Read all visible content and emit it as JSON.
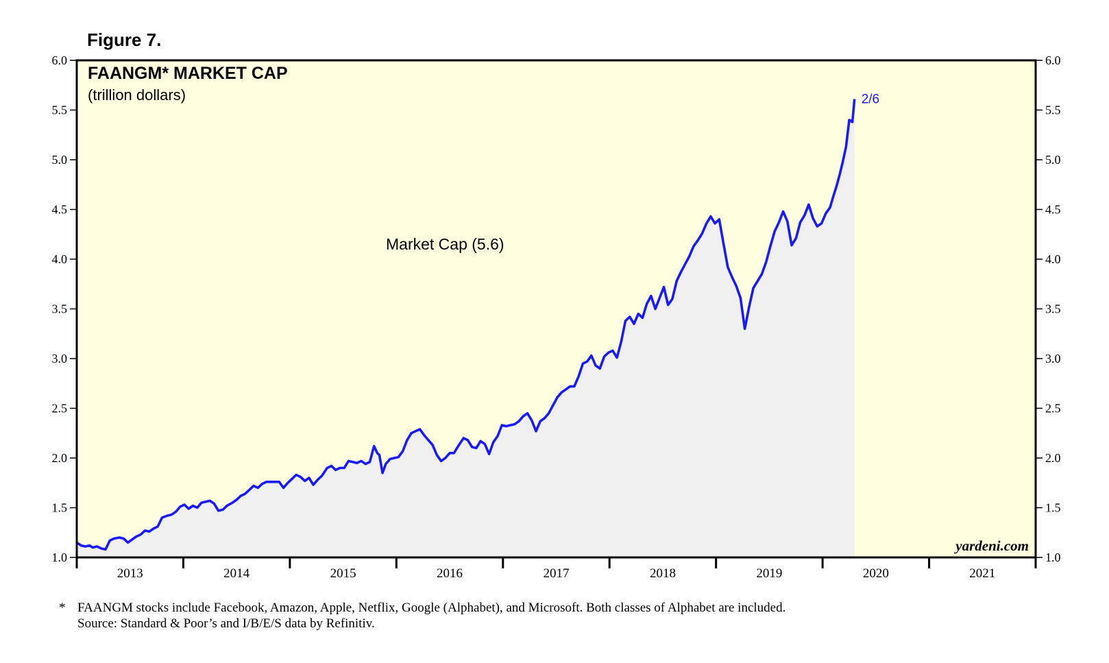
{
  "figure_label": "Figure 7.",
  "footnote": {
    "marker": "*",
    "line1": "FAANGM stocks include Facebook, Amazon, Apple, Netflix, Google (Alphabet), and Microsoft. Both classes of Alphabet are included.",
    "line2": "Source: Standard & Poor’s and I/B/E/S data by Refinitiv."
  },
  "watermark": "yardeni.com",
  "colors": {
    "plot_background": "#ffffe0",
    "area_fill": "#f0f0f0",
    "line": "#1a1aff",
    "frame": "#000000"
  },
  "chart_data": {
    "type": "area",
    "title": "FAANGM* MARKET CAP",
    "subtitle": "(trillion dollars)",
    "series": [
      {
        "name": "Market Cap",
        "label": "Market Cap (5.6)",
        "end_label": "2/6",
        "points": [
          [
            2013.0,
            1.15
          ],
          [
            2013.04,
            1.12
          ],
          [
            2013.08,
            1.11
          ],
          [
            2013.12,
            1.12
          ],
          [
            2013.15,
            1.1
          ],
          [
            2013.19,
            1.11
          ],
          [
            2013.23,
            1.09
          ],
          [
            2013.27,
            1.08
          ],
          [
            2013.31,
            1.17
          ],
          [
            2013.35,
            1.19
          ],
          [
            2013.4,
            1.2
          ],
          [
            2013.44,
            1.19
          ],
          [
            2013.48,
            1.15
          ],
          [
            2013.52,
            1.18
          ],
          [
            2013.56,
            1.21
          ],
          [
            2013.6,
            1.23
          ],
          [
            2013.64,
            1.27
          ],
          [
            2013.68,
            1.26
          ],
          [
            2013.72,
            1.29
          ],
          [
            2013.76,
            1.31
          ],
          [
            2013.8,
            1.4
          ],
          [
            2013.85,
            1.42
          ],
          [
            2013.89,
            1.43
          ],
          [
            2013.93,
            1.46
          ],
          [
            2013.97,
            1.51
          ],
          [
            2014.01,
            1.53
          ],
          [
            2014.05,
            1.49
          ],
          [
            2014.09,
            1.52
          ],
          [
            2014.13,
            1.5
          ],
          [
            2014.17,
            1.55
          ],
          [
            2014.21,
            1.56
          ],
          [
            2014.25,
            1.57
          ],
          [
            2014.29,
            1.54
          ],
          [
            2014.33,
            1.47
          ],
          [
            2014.37,
            1.48
          ],
          [
            2014.41,
            1.52
          ],
          [
            2014.46,
            1.55
          ],
          [
            2014.5,
            1.58
          ],
          [
            2014.54,
            1.62
          ],
          [
            2014.58,
            1.64
          ],
          [
            2014.62,
            1.68
          ],
          [
            2014.66,
            1.72
          ],
          [
            2014.7,
            1.7
          ],
          [
            2014.74,
            1.74
          ],
          [
            2014.78,
            1.76
          ],
          [
            2014.82,
            1.76
          ],
          [
            2014.86,
            1.76
          ],
          [
            2014.9,
            1.76
          ],
          [
            2014.94,
            1.7
          ],
          [
            2014.98,
            1.75
          ],
          [
            2015.02,
            1.79
          ],
          [
            2015.06,
            1.83
          ],
          [
            2015.1,
            1.81
          ],
          [
            2015.14,
            1.77
          ],
          [
            2015.18,
            1.8
          ],
          [
            2015.22,
            1.73
          ],
          [
            2015.26,
            1.78
          ],
          [
            2015.3,
            1.82
          ],
          [
            2015.35,
            1.9
          ],
          [
            2015.39,
            1.92
          ],
          [
            2015.43,
            1.88
          ],
          [
            2015.47,
            1.9
          ],
          [
            2015.51,
            1.9
          ],
          [
            2015.55,
            1.97
          ],
          [
            2015.59,
            1.96
          ],
          [
            2015.63,
            1.95
          ],
          [
            2015.67,
            1.97
          ],
          [
            2015.71,
            1.94
          ],
          [
            2015.75,
            1.96
          ],
          [
            2015.79,
            2.12
          ],
          [
            2015.82,
            2.05
          ],
          [
            2015.84,
            2.03
          ],
          [
            2015.87,
            1.85
          ],
          [
            2015.9,
            1.94
          ],
          [
            2015.94,
            1.99
          ],
          [
            2015.98,
            2.0
          ],
          [
            2016.02,
            2.01
          ],
          [
            2016.06,
            2.07
          ],
          [
            2016.1,
            2.18
          ],
          [
            2016.14,
            2.25
          ],
          [
            2016.18,
            2.27
          ],
          [
            2016.22,
            2.29
          ],
          [
            2016.26,
            2.23
          ],
          [
            2016.3,
            2.18
          ],
          [
            2016.34,
            2.13
          ],
          [
            2016.38,
            2.03
          ],
          [
            2016.42,
            1.97
          ],
          [
            2016.46,
            2.0
          ],
          [
            2016.5,
            2.05
          ],
          [
            2016.54,
            2.05
          ],
          [
            2016.58,
            2.12
          ],
          [
            2016.63,
            2.2
          ],
          [
            2016.67,
            2.18
          ],
          [
            2016.71,
            2.11
          ],
          [
            2016.75,
            2.1
          ],
          [
            2016.79,
            2.17
          ],
          [
            2016.83,
            2.14
          ],
          [
            2016.87,
            2.04
          ],
          [
            2016.91,
            2.16
          ],
          [
            2016.95,
            2.22
          ],
          [
            2016.99,
            2.33
          ],
          [
            2017.03,
            2.32
          ],
          [
            2017.07,
            2.33
          ],
          [
            2017.11,
            2.34
          ],
          [
            2017.15,
            2.37
          ],
          [
            2017.19,
            2.42
          ],
          [
            2017.23,
            2.45
          ],
          [
            2017.27,
            2.38
          ],
          [
            2017.31,
            2.27
          ],
          [
            2017.35,
            2.37
          ],
          [
            2017.39,
            2.4
          ],
          [
            2017.43,
            2.45
          ],
          [
            2017.47,
            2.53
          ],
          [
            2017.51,
            2.61
          ],
          [
            2017.55,
            2.66
          ],
          [
            2017.59,
            2.69
          ],
          [
            2017.63,
            2.72
          ],
          [
            2017.67,
            2.72
          ],
          [
            2017.71,
            2.82
          ],
          [
            2017.75,
            2.95
          ],
          [
            2017.79,
            2.97
          ],
          [
            2017.83,
            3.03
          ],
          [
            2017.87,
            2.93
          ],
          [
            2017.91,
            2.9
          ],
          [
            2017.95,
            3.02
          ],
          [
            2017.99,
            3.06
          ],
          [
            2018.03,
            3.08
          ],
          [
            2018.07,
            3.01
          ],
          [
            2018.11,
            3.17
          ],
          [
            2018.15,
            3.38
          ],
          [
            2018.19,
            3.42
          ],
          [
            2018.23,
            3.35
          ],
          [
            2018.27,
            3.45
          ],
          [
            2018.31,
            3.41
          ],
          [
            2018.35,
            3.55
          ],
          [
            2018.39,
            3.63
          ],
          [
            2018.43,
            3.5
          ],
          [
            2018.47,
            3.61
          ],
          [
            2018.51,
            3.72
          ],
          [
            2018.55,
            3.54
          ],
          [
            2018.59,
            3.6
          ],
          [
            2018.63,
            3.78
          ],
          [
            2018.67,
            3.87
          ],
          [
            2018.71,
            3.95
          ],
          [
            2018.75,
            4.03
          ],
          [
            2018.79,
            4.13
          ],
          [
            2018.83,
            4.19
          ],
          [
            2018.87,
            4.26
          ],
          [
            2018.91,
            4.36
          ],
          [
            2018.95,
            4.43
          ],
          [
            2018.99,
            4.36
          ],
          [
            2019.03,
            4.4
          ],
          [
            2019.07,
            4.16
          ],
          [
            2019.11,
            3.92
          ],
          [
            2019.15,
            3.82
          ],
          [
            2019.19,
            3.73
          ],
          [
            2019.23,
            3.61
          ],
          [
            2019.27,
            3.3
          ],
          [
            2019.31,
            3.52
          ],
          [
            2019.35,
            3.71
          ],
          [
            2019.39,
            3.78
          ],
          [
            2019.43,
            3.85
          ],
          [
            2019.47,
            3.97
          ],
          [
            2019.51,
            4.13
          ],
          [
            2019.55,
            4.28
          ],
          [
            2019.59,
            4.37
          ],
          [
            2019.63,
            4.48
          ],
          [
            2019.67,
            4.38
          ],
          [
            2019.71,
            4.14
          ],
          [
            2019.75,
            4.21
          ],
          [
            2019.79,
            4.37
          ],
          [
            2019.83,
            4.44
          ],
          [
            2019.87,
            4.55
          ],
          [
            2019.91,
            4.41
          ],
          [
            2019.95,
            4.33
          ],
          [
            2019.99,
            4.36
          ],
          [
            2020.03,
            4.46
          ],
          [
            2020.07,
            4.52
          ],
          [
            2020.1,
            4.63
          ],
          [
            2020.13,
            4.73
          ],
          [
            2020.16,
            4.85
          ],
          [
            2020.19,
            4.98
          ],
          [
            2020.22,
            5.13
          ],
          [
            2020.25,
            5.4
          ],
          [
            2020.28,
            5.38
          ],
          [
            2020.3,
            5.61
          ]
        ]
      }
    ],
    "x_ticks": [
      "2013",
      "2014",
      "2015",
      "2016",
      "2017",
      "2018",
      "2019",
      "2020",
      "2021"
    ],
    "xlim": [
      2013,
      2022
    ],
    "ylim": [
      1.0,
      6.0
    ],
    "y_ticks": [
      "1.0",
      "1.5",
      "2.0",
      "2.5",
      "3.0",
      "3.5",
      "4.0",
      "4.5",
      "5.0",
      "5.5",
      "6.0"
    ],
    "xlabel": "",
    "ylabel": "",
    "grid": false
  }
}
